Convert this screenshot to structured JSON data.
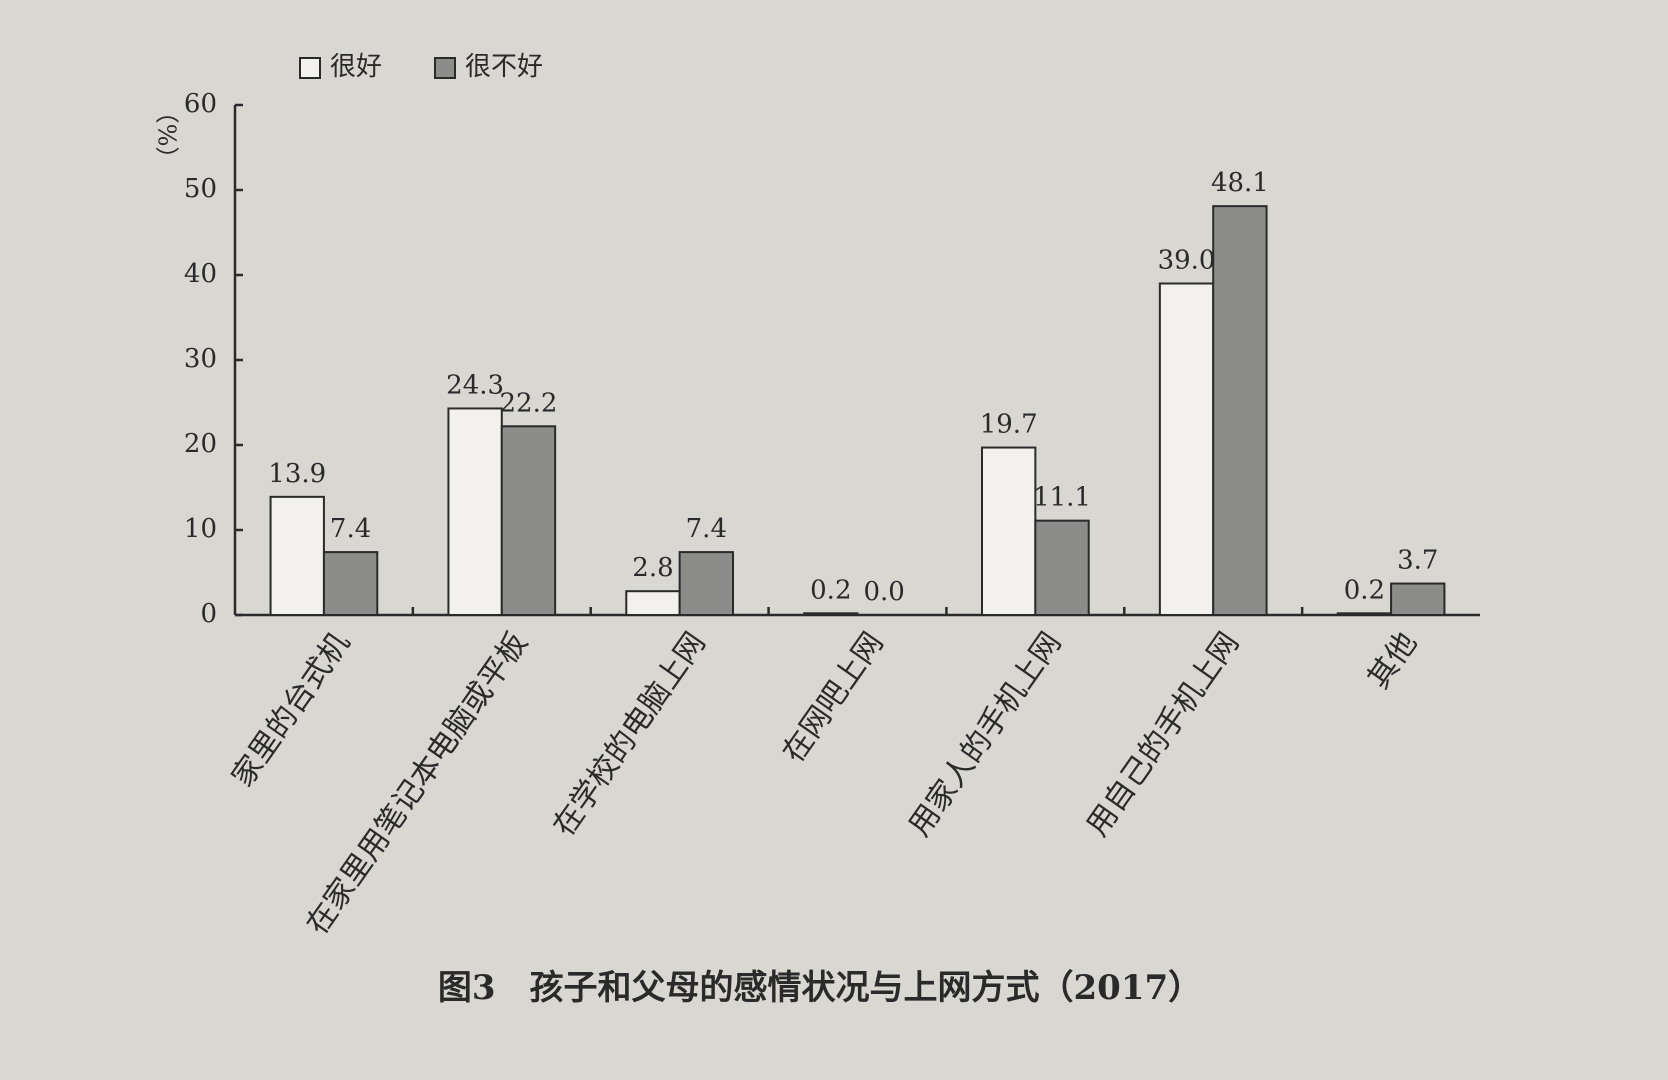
{
  "chart_data": {
    "type": "bar",
    "caption": "图3　孩子和父母的感情状况与上网方式（2017）",
    "y_label": "（%）",
    "categories": [
      "家里的台式机",
      "在家里用笔记本电脑或平板",
      "在学校的电脑上网",
      "在网吧上网",
      "用家人的手机上网",
      "用自己的手机上网",
      "其他"
    ],
    "series": [
      {
        "name": "很好",
        "color": "#f2f1ed",
        "values": [
          13.9,
          24.3,
          2.8,
          0.2,
          19.7,
          39.0,
          0.2
        ],
        "value_labels": [
          "13.9",
          "24.3",
          "2.8",
          "0.2",
          "19.7",
          "39.0",
          "0.2"
        ]
      },
      {
        "name": "很不好",
        "color": "#8c8c8a",
        "values": [
          7.4,
          22.2,
          7.4,
          0.0,
          11.1,
          48.1,
          3.7
        ],
        "value_labels": [
          "7.4",
          "22.2",
          "7.4",
          "0.0",
          "11.1",
          "48.1",
          "3.7"
        ]
      }
    ],
    "ylim": [
      0,
      60
    ],
    "yticks": [
      0,
      10,
      20,
      30,
      40,
      50,
      60
    ],
    "grid": false,
    "legend": "top"
  }
}
